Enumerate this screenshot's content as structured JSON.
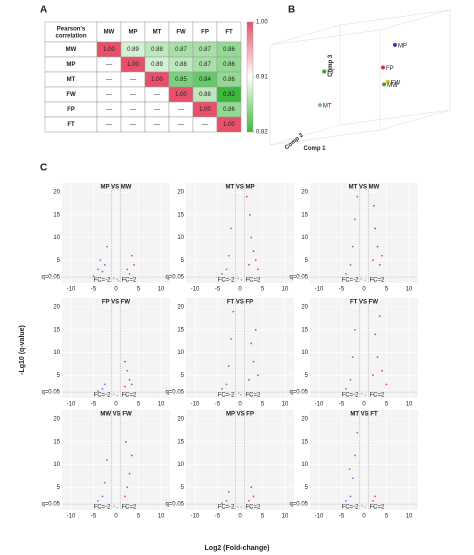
{
  "panel_a": {
    "label": "A",
    "corner": "Pearson's correlation",
    "columns": [
      "MW",
      "MP",
      "MT",
      "FW",
      "FP",
      "FT"
    ],
    "rows": [
      {
        "name": "MW",
        "cells": [
          "1.00",
          "0.89",
          "0.88",
          "0.87",
          "0.87",
          "0.86"
        ],
        "values": [
          1.0,
          0.89,
          0.88,
          0.87,
          0.87,
          0.86
        ]
      },
      {
        "name": "MP",
        "cells": [
          "—",
          "1.00",
          "0.89",
          "0.88",
          "0.87",
          "0.86"
        ],
        "values": [
          null,
          1.0,
          0.89,
          0.88,
          0.87,
          0.86
        ]
      },
      {
        "name": "MT",
        "cells": [
          "—",
          "—",
          "1.00",
          "0.85",
          "0.84",
          "0.86"
        ],
        "values": [
          null,
          null,
          1.0,
          0.85,
          0.84,
          0.86
        ]
      },
      {
        "name": "FW",
        "cells": [
          "—",
          "—",
          "—",
          "1.00",
          "0.88",
          "0.82"
        ],
        "values": [
          null,
          null,
          null,
          1.0,
          0.88,
          0.82
        ]
      },
      {
        "name": "FP",
        "cells": [
          "—",
          "—",
          "—",
          "—",
          "1.00",
          "0.86"
        ],
        "values": [
          null,
          null,
          null,
          null,
          1.0,
          0.86
        ]
      },
      {
        "name": "FT",
        "cells": [
          "—",
          "—",
          "—",
          "—",
          "—",
          "1.00"
        ],
        "values": [
          null,
          null,
          null,
          null,
          null,
          1.0
        ]
      }
    ],
    "scale": [
      {
        "value": 0.82,
        "label": "0.82"
      },
      {
        "value": 0.91,
        "label": "0.91"
      },
      {
        "value": 1.0,
        "label": "1.00"
      }
    ],
    "low_color": "#3cb83c",
    "mid_color": "#ffffff",
    "high_color": "#e8506a"
  },
  "panel_b": {
    "label": "B",
    "axes": [
      "Comp 1",
      "Comp 2",
      "Comp 3"
    ],
    "points": [
      {
        "name": "MP",
        "color": "#3a3ab8",
        "comp": [
          0.055,
          0.3,
          0.8
        ]
      },
      {
        "name": "FP",
        "color": "#d83030",
        "comp": [
          0.1,
          0.2,
          0.6
        ]
      },
      {
        "name": "FW",
        "color": "#d8c020",
        "comp": [
          0.12,
          0.3,
          0.44
        ]
      },
      {
        "name": "MW",
        "color": "#40a040",
        "comp": [
          0.09,
          0.2,
          0.43
        ]
      },
      {
        "name": "FT",
        "color": "#30a030",
        "comp": [
          0.57,
          0.1,
          0.65
        ]
      },
      {
        "name": "MT",
        "color": "#80c080",
        "comp": [
          0.61,
          0.1,
          0.32
        ]
      }
    ]
  },
  "panel_c": {
    "label": "C",
    "xlabel": "Log2 (Fold-change)",
    "ylabel": "-Lg10 (q-value)",
    "xlim": [
      -12,
      12
    ],
    "ylim": [
      0,
      22
    ],
    "xticks": [
      -10,
      -5,
      0,
      5,
      10
    ],
    "yticks": [
      5,
      10,
      15,
      20
    ],
    "fc_left": -1,
    "fc_right": 1,
    "fc_left_label": "FC=-2",
    "fc_right_label": "FC=2",
    "q_line": 1.3,
    "q_label": "q=0.05",
    "down_color": "#6a7fd8",
    "up_color": "#e8474b",
    "ns_color": "#bbbbbb",
    "plots": [
      {
        "title": "MP VS MW",
        "points": [
          [
            -4,
            3
          ],
          [
            -3.5,
            5
          ],
          [
            -3,
            2.5
          ],
          [
            -2.5,
            4
          ],
          [
            -5,
            1.5
          ],
          [
            -2,
            8
          ],
          [
            3,
            2
          ],
          [
            4,
            4
          ],
          [
            2.5,
            3
          ],
          [
            3.5,
            6
          ],
          [
            0.2,
            0.8
          ],
          [
            -0.5,
            1
          ],
          [
            0.6,
            0.5
          ]
        ]
      },
      {
        "title": "MT VS MP",
        "points": [
          [
            -3,
            3
          ],
          [
            -2.5,
            6
          ],
          [
            -4,
            2
          ],
          [
            -2,
            12
          ],
          [
            2,
            4
          ],
          [
            3,
            7
          ],
          [
            2.5,
            10
          ],
          [
            3.5,
            5
          ],
          [
            4,
            3
          ],
          [
            2.2,
            15
          ],
          [
            1.5,
            19
          ],
          [
            0.3,
            0.7
          ],
          [
            -0.4,
            1
          ]
        ]
      },
      {
        "title": "MT VS MW",
        "points": [
          [
            -3,
            4
          ],
          [
            -2.5,
            8
          ],
          [
            -2,
            14
          ],
          [
            -1.5,
            19
          ],
          [
            -4,
            2
          ],
          [
            2,
            5
          ],
          [
            3,
            8
          ],
          [
            2.5,
            12
          ],
          [
            3.5,
            4
          ],
          [
            4,
            6
          ],
          [
            2.2,
            17
          ],
          [
            0.2,
            0.6
          ],
          [
            -0.6,
            0.9
          ]
        ]
      },
      {
        "title": "FP VS FW",
        "points": [
          [
            -3,
            2
          ],
          [
            -2.5,
            3
          ],
          [
            -4,
            1.5
          ],
          [
            2,
            2.5
          ],
          [
            3,
            4
          ],
          [
            2.5,
            6
          ],
          [
            3.5,
            3
          ],
          [
            2,
            8
          ],
          [
            0.3,
            0.5
          ],
          [
            -0.5,
            0.8
          ]
        ]
      },
      {
        "title": "FT VS FP",
        "points": [
          [
            -3,
            3
          ],
          [
            -2.5,
            7
          ],
          [
            -2,
            13
          ],
          [
            -4,
            2
          ],
          [
            -1.5,
            19
          ],
          [
            2,
            4
          ],
          [
            3,
            8
          ],
          [
            2.5,
            12
          ],
          [
            4,
            5
          ],
          [
            3.5,
            15
          ],
          [
            0.2,
            0.7
          ],
          [
            -0.3,
            1
          ]
        ]
      },
      {
        "title": "FT VS FW",
        "points": [
          [
            -3,
            4
          ],
          [
            -2.5,
            9
          ],
          [
            -2,
            15
          ],
          [
            -4,
            2
          ],
          [
            2,
            5
          ],
          [
            3,
            9
          ],
          [
            2.5,
            14
          ],
          [
            4,
            6
          ],
          [
            3.5,
            18
          ],
          [
            5,
            3
          ],
          [
            0.3,
            0.6
          ],
          [
            -0.5,
            0.9
          ]
        ]
      },
      {
        "title": "MW VS FW",
        "points": [
          [
            -3,
            3
          ],
          [
            -2.5,
            6
          ],
          [
            -2,
            11
          ],
          [
            -4,
            2
          ],
          [
            2,
            3
          ],
          [
            2.5,
            5
          ],
          [
            3,
            8
          ],
          [
            3.5,
            12
          ],
          [
            2.2,
            15
          ],
          [
            0.2,
            0.5
          ],
          [
            -0.4,
            0.8
          ]
        ]
      },
      {
        "title": "MP VS FP",
        "points": [
          [
            -3,
            2
          ],
          [
            -2.5,
            4
          ],
          [
            -4,
            1.5
          ],
          [
            2,
            2
          ],
          [
            3,
            3
          ],
          [
            2.5,
            5
          ],
          [
            0.3,
            0.6
          ],
          [
            -0.5,
            0.7
          ]
        ]
      },
      {
        "title": "MT VS FT",
        "points": [
          [
            -3,
            3
          ],
          [
            -2.5,
            7
          ],
          [
            -2,
            12
          ],
          [
            -1.5,
            17
          ],
          [
            -4,
            2
          ],
          [
            -3.2,
            9
          ],
          [
            2,
            2
          ],
          [
            2.5,
            3
          ],
          [
            0.2,
            0.6
          ],
          [
            -0.4,
            0.9
          ]
        ]
      }
    ]
  }
}
